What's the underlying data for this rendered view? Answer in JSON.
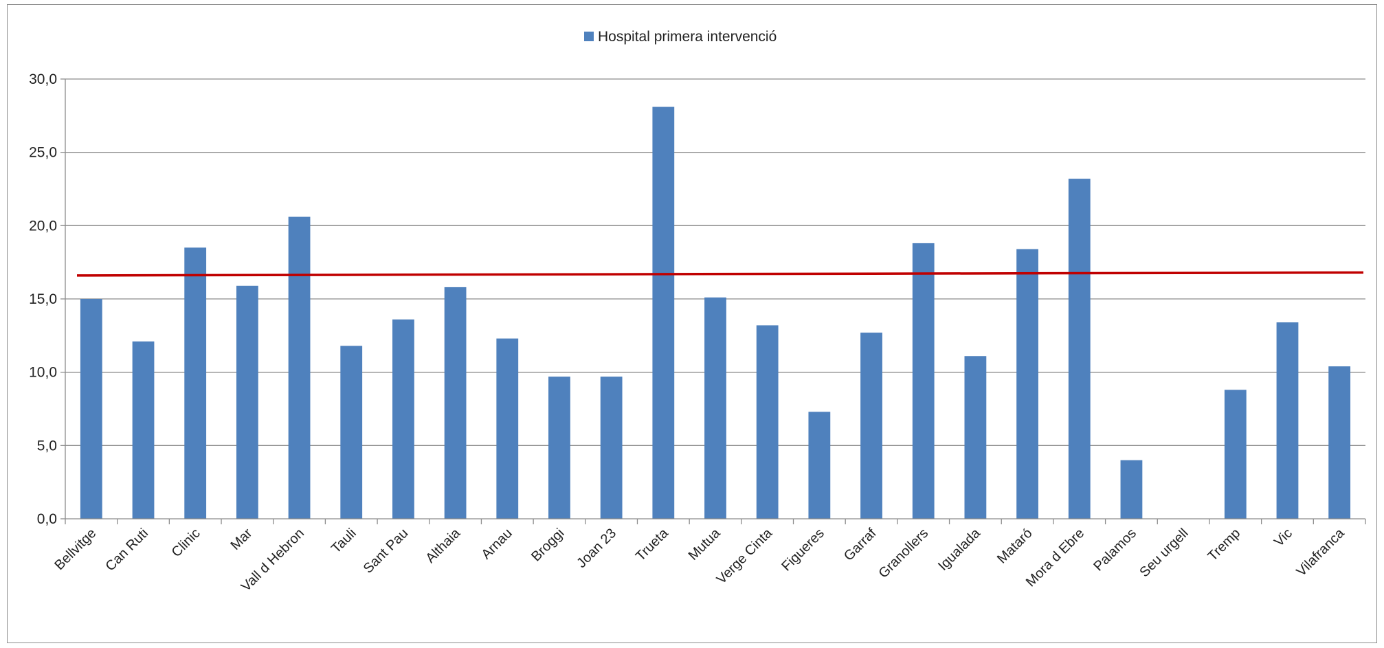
{
  "chart_data": {
    "type": "bar",
    "categories": [
      "Bellvitge",
      "Can Ruti",
      "Clinic",
      "Mar",
      "Vall d Hebron",
      "Tauli",
      "Sant Pau",
      "Althaia",
      "Arnau",
      "Broggi",
      "Joan 23",
      "Trueta",
      "Mutua",
      "Verge Cinta",
      "Figueres",
      "Garraf",
      "Granollers",
      "Igualada",
      "Mataró",
      "Mora d Ebre",
      "Palamos",
      "Seu urgell",
      "Tremp",
      "Vic",
      "Vilafranca"
    ],
    "series": [
      {
        "name": "Hospital primera intervenció",
        "color": "#4f81bd",
        "values": [
          15.0,
          12.1,
          18.5,
          15.9,
          20.6,
          11.8,
          13.6,
          15.8,
          12.3,
          9.7,
          9.7,
          28.1,
          15.1,
          13.2,
          7.3,
          12.7,
          18.8,
          11.1,
          18.4,
          23.2,
          4.0,
          0.0,
          8.8,
          13.4,
          10.4
        ]
      }
    ],
    "reference_line": {
      "color": "#c00000",
      "start_value": 16.6,
      "end_value": 16.8
    },
    "ylim": [
      0,
      30
    ],
    "y_ticks": [
      "0,0",
      "5,0",
      "10,0",
      "15,0",
      "20,0",
      "25,0",
      "30,0"
    ],
    "grid": true,
    "legend_position": "top-center",
    "title": "",
    "xlabel": "",
    "ylabel": ""
  }
}
